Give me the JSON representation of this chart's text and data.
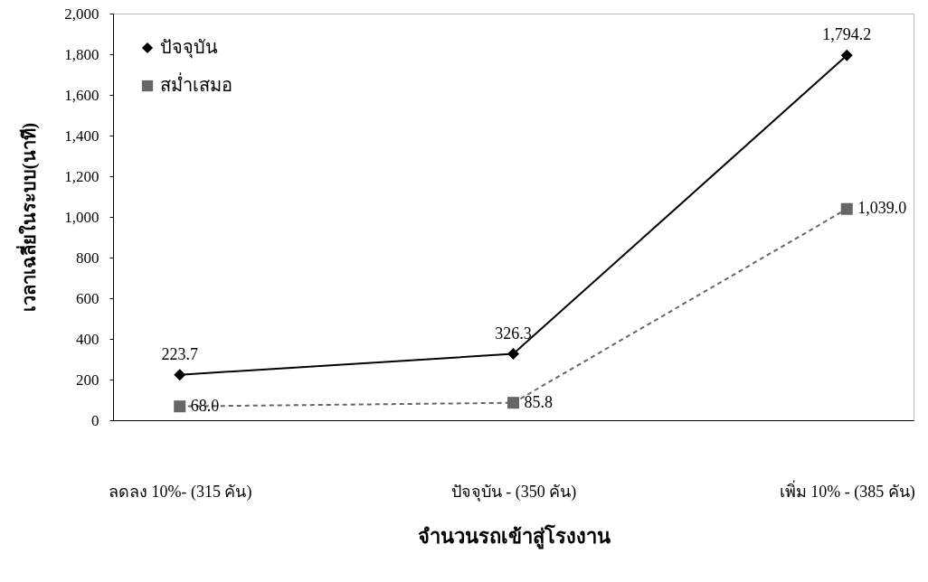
{
  "chart_data": {
    "type": "line",
    "xlabel": "จำนวนรถเข้าสู่โรงงาน",
    "ylabel": "เวลาเฉลี่ยในระบบ(นาที)",
    "categories": [
      "ลดลง 10%- (315 คัน)",
      "ปัจจุบัน - (350 คัน)",
      "เพิ่ม 10% - (385 คัน)"
    ],
    "series": [
      {
        "name": "ปัจจุบัน",
        "color": "#000000",
        "values": [
          223.7,
          326.3,
          1794.2
        ],
        "value_labels": [
          "223.7",
          "326.3",
          "1,794.2"
        ],
        "marker": "diamond",
        "line_style": "solid"
      },
      {
        "name": "สม่ำเสมอ",
        "color": "#666666",
        "values": [
          68.0,
          85.8,
          1039.0
        ],
        "value_labels": [
          "68.0",
          "85.8",
          "1,039.0"
        ],
        "marker": "square",
        "line_style": "dashed"
      }
    ],
    "ylim": [
      0,
      2000
    ],
    "yticks": [
      0,
      200,
      400,
      600,
      800,
      {
        "value": 1000,
        "label": "1,000"
      },
      {
        "value": 1200,
        "label": "1,200"
      },
      {
        "value": 1400,
        "label": "1,400"
      },
      {
        "value": 1600,
        "label": "1,600"
      },
      {
        "value": 1800,
        "label": "1,800"
      },
      {
        "value": 2000,
        "label": "2,000"
      }
    ],
    "legend": "top left"
  }
}
